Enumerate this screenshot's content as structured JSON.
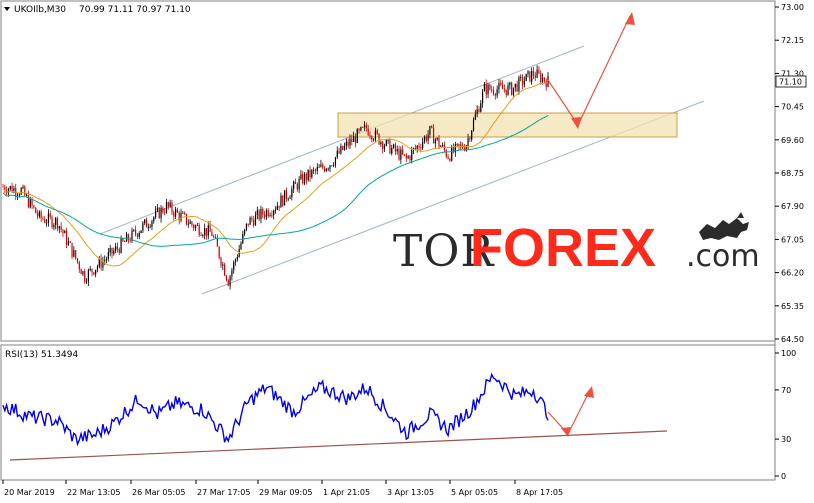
{
  "header": {
    "symbol": "UKOIlb,M30",
    "ohlc": "70.99 71.11 70.97 71.10",
    "current_price": "71.10"
  },
  "rsi_header": "RSI(13) 51.3494",
  "watermark": {
    "part1": "TOR",
    "part2": "FOREX",
    "part3": ".com"
  },
  "colors": {
    "up_candle": "#000000",
    "down_candle": "#d00000",
    "ma_fast": "#e0a020",
    "ma_slow": "#00a89a",
    "channel": "#9fb3c8",
    "zone_fill": "#f3e2b3",
    "zone_border": "#c8a040",
    "arrow": "#f05040",
    "rsi_line": "#0000ee",
    "rsi_trend": "#a0524a"
  },
  "chart_data": {
    "type": "candlestick",
    "timeframe": "M30",
    "price_ylim": [
      64.5,
      73.0
    ],
    "price_ticks": [
      "73.00",
      "72.15",
      "71.30",
      "70.45",
      "69.60",
      "68.75",
      "67.90",
      "67.05",
      "66.20",
      "65.35",
      "64.50"
    ],
    "x_tick_labels": [
      "20 Mar 2019",
      "22 Mar 13:05",
      "26 Mar 05:05",
      "27 Mar 17:05",
      "29 Mar 09:05",
      "1 Apr 21:05",
      "3 Apr 13:05",
      "5 Apr 05:05",
      "8 Apr 17:05"
    ],
    "approx_close_path": [
      {
        "bar": 0,
        "price": 68.4
      },
      {
        "bar": 10,
        "price": 68.3
      },
      {
        "bar": 20,
        "price": 67.6
      },
      {
        "bar": 30,
        "price": 67.5
      },
      {
        "bar": 45,
        "price": 66.1
      },
      {
        "bar": 60,
        "price": 66.7
      },
      {
        "bar": 75,
        "price": 67.3
      },
      {
        "bar": 90,
        "price": 67.9
      },
      {
        "bar": 105,
        "price": 67.4
      },
      {
        "bar": 115,
        "price": 67.2
      },
      {
        "bar": 124,
        "price": 66.0
      },
      {
        "bar": 135,
        "price": 67.5
      },
      {
        "bar": 150,
        "price": 67.9
      },
      {
        "bar": 165,
        "price": 68.6
      },
      {
        "bar": 180,
        "price": 69.0
      },
      {
        "bar": 190,
        "price": 69.5
      },
      {
        "bar": 200,
        "price": 69.9
      },
      {
        "bar": 210,
        "price": 69.5
      },
      {
        "bar": 222,
        "price": 69.1
      },
      {
        "bar": 235,
        "price": 69.8
      },
      {
        "bar": 245,
        "price": 69.2
      },
      {
        "bar": 255,
        "price": 69.5
      },
      {
        "bar": 265,
        "price": 70.9
      },
      {
        "bar": 280,
        "price": 70.9
      },
      {
        "bar": 292,
        "price": 71.3
      },
      {
        "bar": 300,
        "price": 71.1
      }
    ],
    "sell_zone": [
      69.75,
      70.3
    ],
    "scenario_arrow": [
      71.1,
      70.0,
      72.9
    ],
    "rsi": {
      "period": 13,
      "last_value": 51.3494,
      "ylim": [
        0,
        100
      ],
      "levels": [
        "100",
        "70",
        "30",
        "0"
      ],
      "approx_path": [
        {
          "bar": 0,
          "value": 58
        },
        {
          "bar": 15,
          "value": 48
        },
        {
          "bar": 30,
          "value": 45
        },
        {
          "bar": 40,
          "value": 30
        },
        {
          "bar": 50,
          "value": 33
        },
        {
          "bar": 60,
          "value": 42
        },
        {
          "bar": 75,
          "value": 63
        },
        {
          "bar": 85,
          "value": 50
        },
        {
          "bar": 95,
          "value": 59
        },
        {
          "bar": 110,
          "value": 54
        },
        {
          "bar": 124,
          "value": 30
        },
        {
          "bar": 135,
          "value": 60
        },
        {
          "bar": 145,
          "value": 72
        },
        {
          "bar": 160,
          "value": 52
        },
        {
          "bar": 175,
          "value": 72
        },
        {
          "bar": 190,
          "value": 63
        },
        {
          "bar": 200,
          "value": 72
        },
        {
          "bar": 212,
          "value": 52
        },
        {
          "bar": 222,
          "value": 35
        },
        {
          "bar": 235,
          "value": 50
        },
        {
          "bar": 245,
          "value": 38
        },
        {
          "bar": 258,
          "value": 55
        },
        {
          "bar": 270,
          "value": 82
        },
        {
          "bar": 282,
          "value": 65
        },
        {
          "bar": 292,
          "value": 70
        },
        {
          "bar": 300,
          "value": 51
        }
      ]
    }
  }
}
